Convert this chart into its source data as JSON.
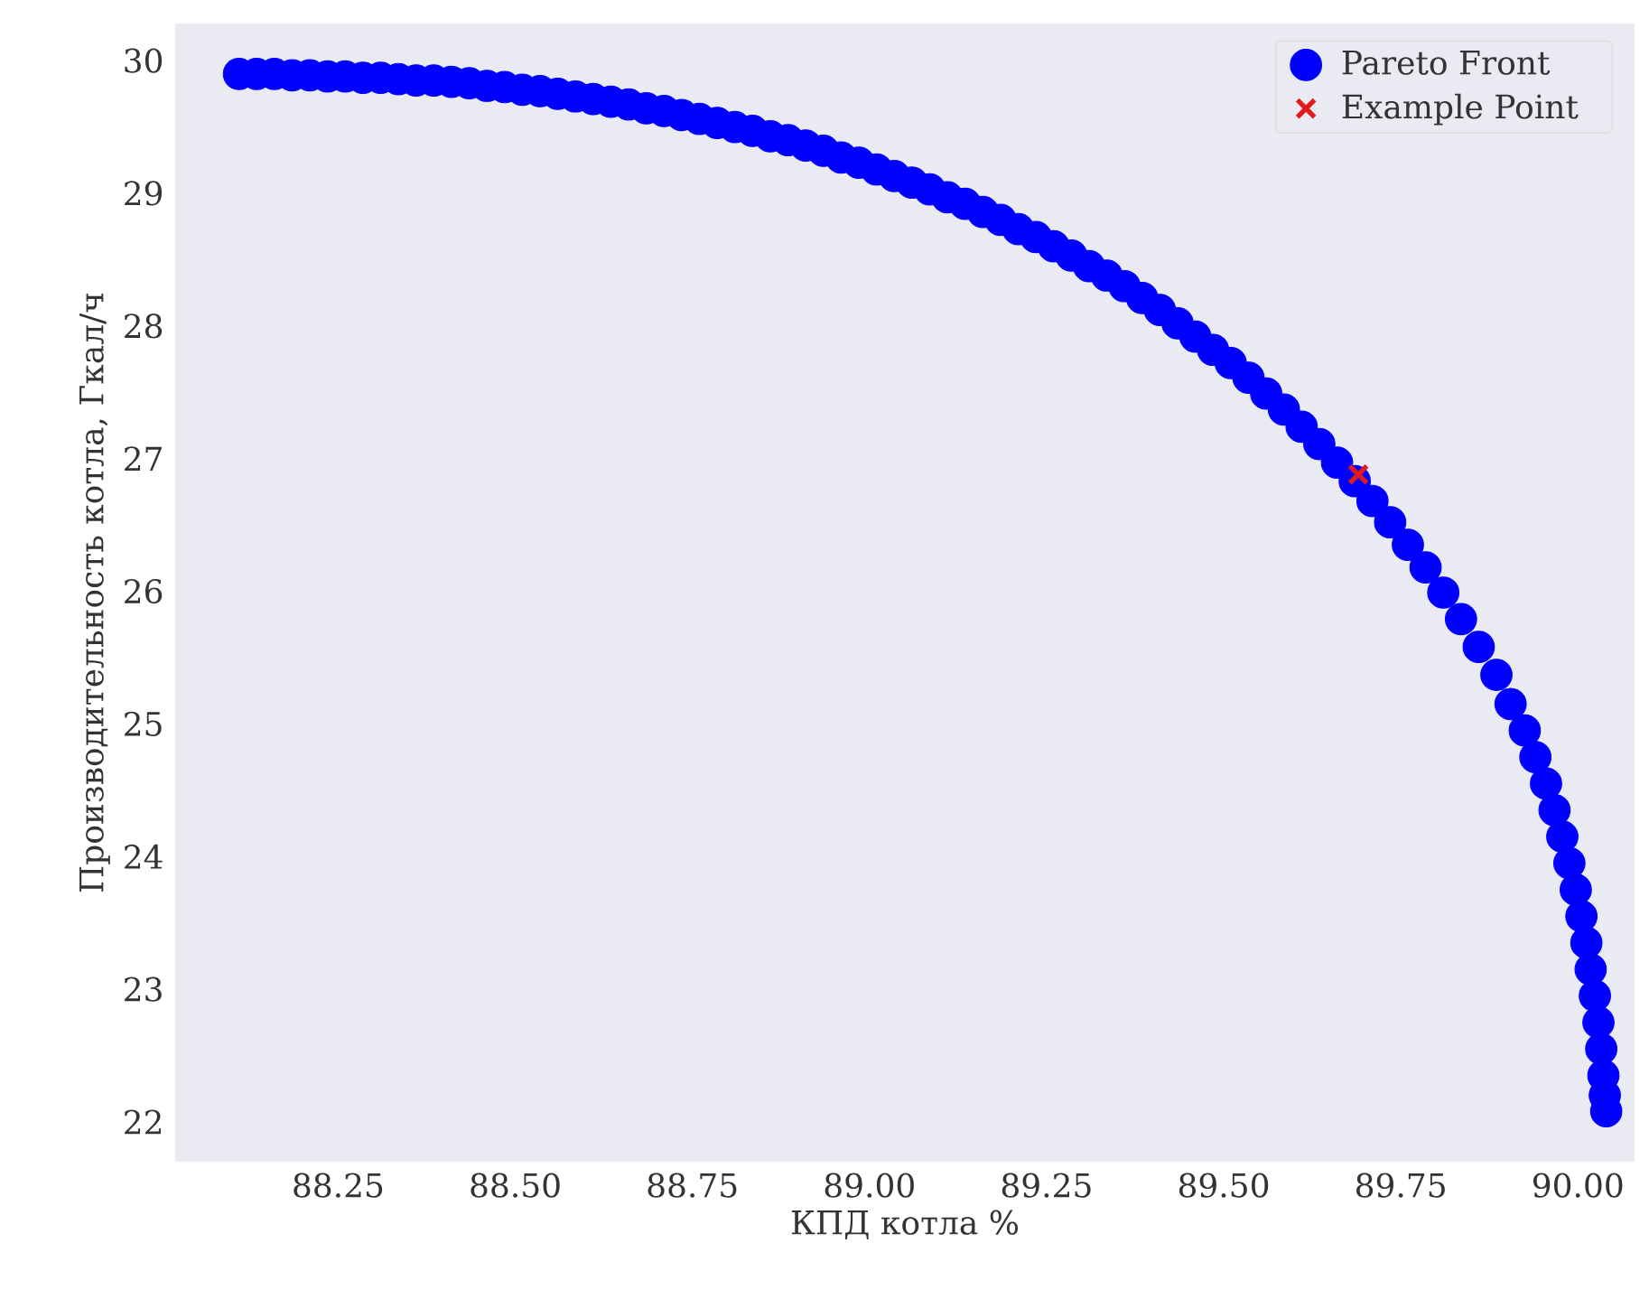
{
  "chart_data": {
    "type": "scatter",
    "xlabel": "КПД котла %",
    "ylabel": "Производительность котла, Гкал/ч",
    "xlim": [
      88.02,
      90.08
    ],
    "ylim": [
      21.7,
      30.28
    ],
    "xticks": [
      {
        "value": 88.25,
        "label": "88.25"
      },
      {
        "value": 88.5,
        "label": "88.50"
      },
      {
        "value": 88.75,
        "label": "88.75"
      },
      {
        "value": 89.0,
        "label": "89.00"
      },
      {
        "value": 89.25,
        "label": "89.25"
      },
      {
        "value": 89.5,
        "label": "89.50"
      },
      {
        "value": 89.75,
        "label": "89.75"
      },
      {
        "value": 90.0,
        "label": "90.00"
      }
    ],
    "yticks": [
      22,
      23,
      24,
      25,
      26,
      27,
      28,
      29,
      30
    ],
    "legend": "top right",
    "series": [
      {
        "name": "Pareto Front",
        "color": "#0000ff",
        "marker": "circle",
        "x": [
          88.11,
          88.135,
          88.16,
          88.185,
          88.21,
          88.235,
          88.26,
          88.285,
          88.31,
          88.335,
          88.36,
          88.385,
          88.41,
          88.435,
          88.46,
          88.485,
          88.51,
          88.535,
          88.56,
          88.585,
          88.61,
          88.635,
          88.66,
          88.685,
          88.71,
          88.735,
          88.76,
          88.785,
          88.81,
          88.835,
          88.86,
          88.885,
          88.91,
          88.935,
          88.96,
          88.985,
          89.01,
          89.035,
          89.06,
          89.085,
          89.11,
          89.135,
          89.16,
          89.185,
          89.21,
          89.235,
          89.26,
          89.285,
          89.31,
          89.335,
          89.36,
          89.385,
          89.41,
          89.435,
          89.46,
          89.485,
          89.51,
          89.535,
          89.56,
          89.585,
          89.61,
          89.635,
          89.66,
          89.685,
          89.71,
          89.735,
          89.76,
          89.785,
          89.81,
          89.835,
          89.86,
          89.885,
          89.905,
          89.925,
          89.94,
          89.955,
          89.967,
          89.978,
          89.988,
          89.997,
          90.005,
          90.012,
          90.018,
          90.024,
          90.029,
          90.033,
          90.036,
          90.038,
          90.04
        ],
        "values": [
          29.9,
          29.9,
          29.9,
          29.89,
          29.89,
          29.88,
          29.88,
          29.87,
          29.87,
          29.86,
          29.85,
          29.85,
          29.84,
          29.83,
          29.81,
          29.8,
          29.78,
          29.77,
          29.75,
          29.73,
          29.71,
          29.69,
          29.67,
          29.64,
          29.62,
          29.59,
          29.56,
          29.53,
          29.5,
          29.47,
          29.43,
          29.4,
          29.36,
          29.32,
          29.27,
          29.23,
          29.18,
          29.13,
          29.08,
          29.03,
          28.97,
          28.92,
          28.86,
          28.8,
          28.73,
          28.67,
          28.6,
          28.53,
          28.45,
          28.38,
          28.3,
          28.21,
          28.12,
          28.02,
          27.92,
          27.82,
          27.72,
          27.61,
          27.49,
          27.37,
          27.24,
          27.11,
          26.97,
          26.83,
          26.68,
          26.52,
          26.35,
          26.18,
          25.99,
          25.79,
          25.58,
          25.37,
          25.15,
          24.95,
          24.75,
          24.55,
          24.35,
          24.15,
          23.95,
          23.75,
          23.55,
          23.35,
          23.15,
          22.95,
          22.75,
          22.55,
          22.35,
          22.2,
          22.08
        ]
      },
      {
        "name": "Example Point",
        "color": "#e31a1c",
        "marker": "cross",
        "x": [
          89.69
        ],
        "values": [
          26.88
        ]
      }
    ]
  }
}
